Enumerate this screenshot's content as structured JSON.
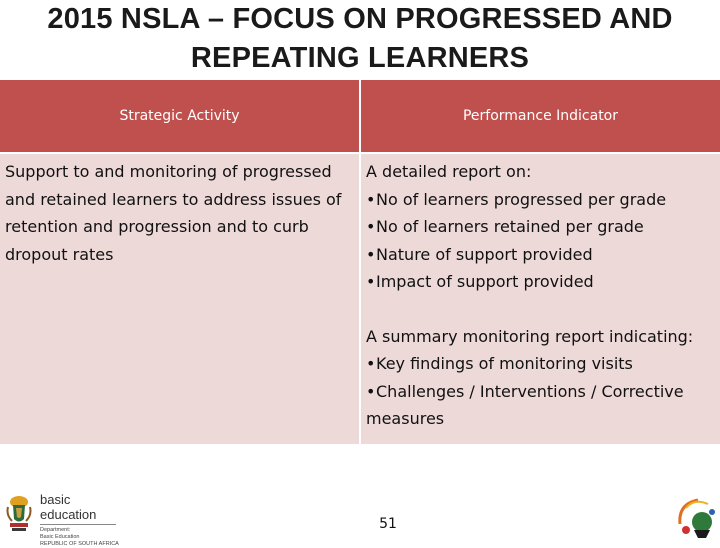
{
  "slide": {
    "title_lines": [
      "2015 NSLA – FOCUS ON PROGRESSED AND",
      "REPEATING LEARNERS"
    ],
    "page_number": "51"
  },
  "table": {
    "headers": [
      "Strategic Activity",
      "Performance Indicator"
    ],
    "activity_lines": [
      "Support  to and monitoring of progressed",
      "and retained learners to address issues of",
      "retention and progression and to curb",
      "dropout rates"
    ],
    "indicator_block1_intro": "A detailed report on:",
    "indicator_block1_bullets": [
      "No of learners progressed per grade",
      "No of learners retained per grade",
      "Nature of support provided",
      "Impact of support provided"
    ],
    "indicator_block2_intro": "A summary monitoring report indicating:",
    "indicator_block2_bullets": [
      "Key findings of monitoring visits",
      "Challenges / Interventions / Corrective"
    ],
    "indicator_block2_continuation": "measures",
    "bullet_glyph": "•"
  },
  "logo": {
    "name": "basic education",
    "sub_lines": [
      "Department:",
      "Basic Education",
      "REPUBLIC OF SOUTH AFRICA"
    ]
  },
  "colors": {
    "header_bg": "#c0504d",
    "body_bg": "#eed9d9"
  }
}
